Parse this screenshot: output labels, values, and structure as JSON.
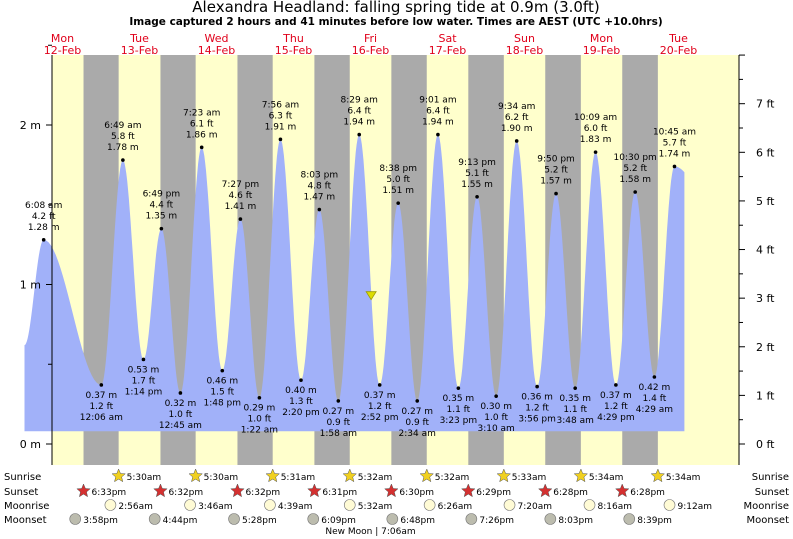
{
  "header": {
    "title": "Alexandra Headland: falling  spring tide at 0.9m (3.0ft)",
    "subtitle": "Image captured 2 hours and 41 minutes before low water. Times are AEST (UTC +10.0hrs)"
  },
  "days": [
    {
      "dow": "Mon",
      "date": "12-Feb"
    },
    {
      "dow": "Tue",
      "date": "13-Feb"
    },
    {
      "dow": "Wed",
      "date": "14-Feb"
    },
    {
      "dow": "Thu",
      "date": "15-Feb"
    },
    {
      "dow": "Fri",
      "date": "16-Feb"
    },
    {
      "dow": "Sat",
      "date": "17-Feb"
    },
    {
      "dow": "Sun",
      "date": "18-Feb"
    },
    {
      "dow": "Mon",
      "date": "19-Feb"
    },
    {
      "dow": "Tue",
      "date": "20-Feb"
    }
  ],
  "chart_data": {
    "type": "area",
    "title": "Alexandra Headland: falling  spring tide at 0.9m (3.0ft)",
    "left_axis": {
      "unit": "m",
      "ticks": [
        "0 m",
        "1 m",
        "2 m"
      ],
      "ylim": [
        -0.05,
        2.55
      ]
    },
    "right_axis": {
      "unit": "ft",
      "ticks": [
        "0 ft",
        "1 ft",
        "2 ft",
        "3 ft",
        "4 ft",
        "5 ft",
        "6 ft",
        "7 ft"
      ]
    },
    "x_start": "12-Feb 00:00",
    "x_end": "20-Feb 24:00",
    "series_start_time": "12-Feb 00:10",
    "series_start_height_m": 0.62,
    "series_end_time": "20-Feb 13:50",
    "fill_color": "#a1b1f9",
    "day_bg_color": "#ffffcc",
    "night_bg_color": "#aaaaaa",
    "current": {
      "time": "16-Feb 12:12",
      "height_m": 0.93,
      "marker_color": "#dddd00"
    },
    "tides": [
      {
        "day": 0,
        "time": "6:08 am",
        "m": "1.28 m",
        "ft": "4.2 ft",
        "h": 1.28,
        "type": "high"
      },
      {
        "day": 1,
        "time": "12:06 am",
        "m": "0.37 m",
        "ft": "1.2 ft",
        "h": 0.37,
        "type": "low"
      },
      {
        "day": 1,
        "time": "6:49 am",
        "m": "1.78 m",
        "ft": "5.8 ft",
        "h": 1.78,
        "type": "high"
      },
      {
        "day": 1,
        "time": "1:14 pm",
        "m": "0.53 m",
        "ft": "1.7 ft",
        "h": 0.53,
        "type": "low"
      },
      {
        "day": 1,
        "time": "6:49 pm",
        "m": "1.35 m",
        "ft": "4.4 ft",
        "h": 1.35,
        "type": "high"
      },
      {
        "day": 2,
        "time": "12:45 am",
        "m": "0.32 m",
        "ft": "1.0 ft",
        "h": 0.32,
        "type": "low"
      },
      {
        "day": 2,
        "time": "7:23 am",
        "m": "1.86 m",
        "ft": "6.1 ft",
        "h": 1.86,
        "type": "high"
      },
      {
        "day": 2,
        "time": "1:48 pm",
        "m": "0.46 m",
        "ft": "1.5 ft",
        "h": 0.46,
        "type": "low"
      },
      {
        "day": 2,
        "time": "7:27 pm",
        "m": "1.41 m",
        "ft": "4.6 ft",
        "h": 1.41,
        "type": "high"
      },
      {
        "day": 3,
        "time": "1:22 am",
        "m": "0.29 m",
        "ft": "1.0 ft",
        "h": 0.29,
        "type": "low"
      },
      {
        "day": 3,
        "time": "7:56 am",
        "m": "1.91 m",
        "ft": "6.3 ft",
        "h": 1.91,
        "type": "high"
      },
      {
        "day": 3,
        "time": "2:20 pm",
        "m": "0.40 m",
        "ft": "1.3 ft",
        "h": 0.4,
        "type": "low"
      },
      {
        "day": 3,
        "time": "8:03 pm",
        "m": "1.47 m",
        "ft": "4.8 ft",
        "h": 1.47,
        "type": "high"
      },
      {
        "day": 4,
        "time": "1:58 am",
        "m": "0.27 m",
        "ft": "0.9 ft",
        "h": 0.27,
        "type": "low"
      },
      {
        "day": 4,
        "time": "8:29 am",
        "m": "1.94 m",
        "ft": "6.4 ft",
        "h": 1.94,
        "type": "high"
      },
      {
        "day": 4,
        "time": "2:52 pm",
        "m": "0.37 m",
        "ft": "1.2 ft",
        "h": 0.37,
        "type": "low"
      },
      {
        "day": 4,
        "time": "8:38 pm",
        "m": "1.51 m",
        "ft": "5.0 ft",
        "h": 1.51,
        "type": "high"
      },
      {
        "day": 5,
        "time": "2:34 am",
        "m": "0.27 m",
        "ft": "0.9 ft",
        "h": 0.27,
        "type": "low"
      },
      {
        "day": 5,
        "time": "9:01 am",
        "m": "1.94 m",
        "ft": "6.4 ft",
        "h": 1.94,
        "type": "high"
      },
      {
        "day": 5,
        "time": "3:23 pm",
        "m": "0.35 m",
        "ft": "1.1 ft",
        "h": 0.35,
        "type": "low"
      },
      {
        "day": 5,
        "time": "9:13 pm",
        "m": "1.55 m",
        "ft": "5.1 ft",
        "h": 1.55,
        "type": "high"
      },
      {
        "day": 6,
        "time": "3:10 am",
        "m": "0.30 m",
        "ft": "1.0 ft",
        "h": 0.3,
        "type": "low"
      },
      {
        "day": 6,
        "time": "9:34 am",
        "m": "1.90 m",
        "ft": "6.2 ft",
        "h": 1.9,
        "type": "high"
      },
      {
        "day": 6,
        "time": "3:56 pm",
        "m": "0.36 m",
        "ft": "1.2 ft",
        "h": 0.36,
        "type": "low"
      },
      {
        "day": 6,
        "time": "9:50 pm",
        "m": "1.57 m",
        "ft": "5.2 ft",
        "h": 1.57,
        "type": "high"
      },
      {
        "day": 7,
        "time": "3:48 am",
        "m": "0.35 m",
        "ft": "1.1 ft",
        "h": 0.35,
        "type": "low"
      },
      {
        "day": 7,
        "time": "10:09 am",
        "m": "1.83 m",
        "ft": "6.0 ft",
        "h": 1.83,
        "type": "high"
      },
      {
        "day": 7,
        "time": "4:29 pm",
        "m": "0.37 m",
        "ft": "1.2 ft",
        "h": 0.37,
        "type": "low"
      },
      {
        "day": 7,
        "time": "10:30 pm",
        "m": "1.58 m",
        "ft": "5.2 ft",
        "h": 1.58,
        "type": "high"
      },
      {
        "day": 8,
        "time": "4:29 am",
        "m": "0.42 m",
        "ft": "1.4 ft",
        "h": 0.42,
        "type": "low"
      },
      {
        "day": 8,
        "time": "10:45 am",
        "m": "1.74 m",
        "ft": "5.7 ft",
        "h": 1.74,
        "type": "high"
      }
    ],
    "nights": [
      {
        "start": "12-Feb 18:33",
        "end": "13-Feb 05:30"
      },
      {
        "start": "13-Feb 18:32",
        "end": "14-Feb 05:30"
      },
      {
        "start": "14-Feb 18:32",
        "end": "15-Feb 05:31"
      },
      {
        "start": "15-Feb 18:31",
        "end": "16-Feb 05:32"
      },
      {
        "start": "16-Feb 18:30",
        "end": "17-Feb 05:32"
      },
      {
        "start": "17-Feb 18:29",
        "end": "18-Feb 05:33"
      },
      {
        "start": "18-Feb 18:28",
        "end": "19-Feb 05:34"
      },
      {
        "start": "19-Feb 18:28",
        "end": "20-Feb 05:34"
      }
    ]
  },
  "events": {
    "row_labels": [
      "Sunrise",
      "Sunset",
      "Moonrise",
      "Moonset"
    ],
    "sunrise": [
      {
        "day": 1,
        "time": "5:30am"
      },
      {
        "day": 2,
        "time": "5:30am"
      },
      {
        "day": 3,
        "time": "5:31am"
      },
      {
        "day": 4,
        "time": "5:32am"
      },
      {
        "day": 5,
        "time": "5:32am"
      },
      {
        "day": 6,
        "time": "5:33am"
      },
      {
        "day": 7,
        "time": "5:34am"
      },
      {
        "day": 8,
        "time": "5:34am"
      }
    ],
    "sunset": [
      {
        "day": 0,
        "time": "6:33pm"
      },
      {
        "day": 1,
        "time": "6:32pm"
      },
      {
        "day": 2,
        "time": "6:32pm"
      },
      {
        "day": 3,
        "time": "6:31pm"
      },
      {
        "day": 4,
        "time": "6:30pm"
      },
      {
        "day": 5,
        "time": "6:29pm"
      },
      {
        "day": 6,
        "time": "6:28pm"
      },
      {
        "day": 7,
        "time": "6:28pm"
      }
    ],
    "moonrise": [
      {
        "day": 1,
        "time": "2:56am"
      },
      {
        "day": 2,
        "time": "3:46am"
      },
      {
        "day": 3,
        "time": "4:39am"
      },
      {
        "day": 4,
        "time": "5:32am"
      },
      {
        "day": 5,
        "time": "6:26am"
      },
      {
        "day": 6,
        "time": "7:20am"
      },
      {
        "day": 7,
        "time": "8:16am"
      },
      {
        "day": 8,
        "time": "9:12am"
      }
    ],
    "moonset": [
      {
        "day": 0,
        "time": "3:58pm"
      },
      {
        "day": 1,
        "time": "4:44pm"
      },
      {
        "day": 2,
        "time": "5:28pm"
      },
      {
        "day": 3,
        "time": "6:09pm"
      },
      {
        "day": 4,
        "time": "6:48pm"
      },
      {
        "day": 5,
        "time": "7:26pm"
      },
      {
        "day": 6,
        "time": "8:03pm"
      },
      {
        "day": 7,
        "time": "8:39pm"
      }
    ],
    "moon_phase": {
      "day": 4,
      "text": "New Moon | 7:06am"
    },
    "colors": {
      "sun_star": "#f0d020",
      "sunset_star": "#d43030",
      "moonrise": "#fffbd5",
      "moonset": "#bcbcae"
    }
  }
}
